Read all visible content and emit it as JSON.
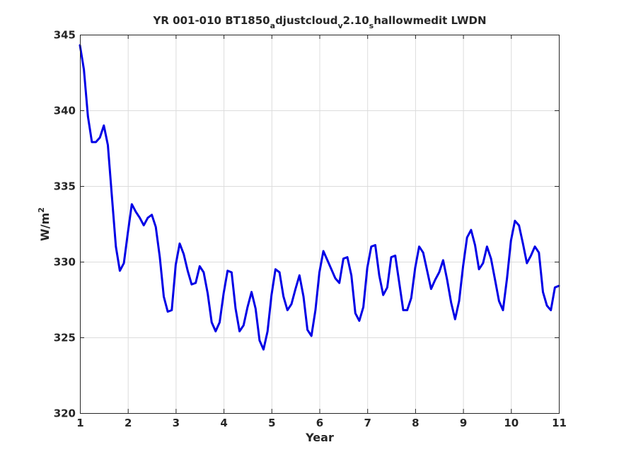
{
  "chart_data": {
    "type": "line",
    "title": {
      "seg1": "YR 001-010 BT1850",
      "sub1": "a",
      "seg2": "djustcloud",
      "sub2": "v",
      "seg3": "2.10",
      "sub3": "s",
      "seg4": "hallowmedit LWDN"
    },
    "xlabel": "Year",
    "ylabel": "W/m",
    "ylabel_sup": "2",
    "xlim": [
      1,
      11
    ],
    "ylim": [
      320,
      345
    ],
    "xticks": [
      "1",
      "2",
      "3",
      "4",
      "5",
      "6",
      "7",
      "8",
      "9",
      "10",
      "11"
    ],
    "yticks": [
      "320",
      "325",
      "330",
      "335",
      "340",
      "345"
    ],
    "grid": true,
    "series_color": "#0000e6",
    "series": [
      {
        "name": "",
        "x": [
          1.0,
          1.083,
          1.167,
          1.25,
          1.333,
          1.417,
          1.5,
          1.583,
          1.667,
          1.75,
          1.833,
          1.917,
          2.0,
          2.083,
          2.167,
          2.25,
          2.333,
          2.417,
          2.5,
          2.583,
          2.667,
          2.75,
          2.833,
          2.917,
          3.0,
          3.083,
          3.167,
          3.25,
          3.333,
          3.417,
          3.5,
          3.583,
          3.667,
          3.75,
          3.833,
          3.917,
          4.0,
          4.083,
          4.167,
          4.25,
          4.333,
          4.417,
          4.5,
          4.583,
          4.667,
          4.75,
          4.833,
          4.917,
          5.0,
          5.083,
          5.167,
          5.25,
          5.333,
          5.417,
          5.5,
          5.583,
          5.667,
          5.75,
          5.833,
          5.917,
          6.0,
          6.083,
          6.167,
          6.25,
          6.333,
          6.417,
          6.5,
          6.583,
          6.667,
          6.75,
          6.833,
          6.917,
          7.0,
          7.083,
          7.167,
          7.25,
          7.333,
          7.417,
          7.5,
          7.583,
          7.667,
          7.75,
          7.833,
          7.917,
          8.0,
          8.083,
          8.167,
          8.25,
          8.333,
          8.417,
          8.5,
          8.583,
          8.667,
          8.75,
          8.833,
          8.917,
          9.0,
          9.083,
          9.167,
          9.25,
          9.333,
          9.417,
          9.5,
          9.583,
          9.667,
          9.75,
          9.833,
          9.917,
          10.0,
          10.083,
          10.167,
          10.25,
          10.333,
          10.417,
          10.5,
          10.583,
          10.667,
          10.75,
          10.833,
          10.917,
          11.0
        ],
        "y": [
          344.3,
          342.7,
          339.6,
          337.9,
          337.9,
          338.2,
          339.0,
          337.7,
          334.3,
          331.0,
          329.4,
          329.9,
          331.9,
          333.8,
          333.3,
          332.9,
          332.4,
          332.9,
          333.1,
          332.3,
          330.3,
          327.7,
          326.7,
          326.8,
          329.8,
          331.2,
          330.5,
          329.4,
          328.5,
          328.6,
          329.7,
          329.3,
          327.9,
          326.0,
          325.4,
          326.0,
          327.9,
          329.4,
          329.3,
          326.9,
          325.4,
          325.8,
          327.0,
          328.0,
          326.9,
          324.8,
          324.2,
          325.4,
          327.8,
          329.5,
          329.3,
          327.7,
          326.8,
          327.2,
          328.2,
          329.1,
          327.7,
          325.5,
          325.1,
          326.8,
          329.3,
          330.7,
          330.1,
          329.5,
          328.9,
          328.6,
          330.2,
          330.3,
          329.1,
          326.6,
          326.1,
          327.0,
          329.6,
          331.0,
          331.1,
          329.1,
          327.8,
          328.3,
          330.3,
          330.4,
          328.6,
          326.8,
          326.8,
          327.6,
          329.6,
          331.0,
          330.6,
          329.4,
          328.2,
          328.8,
          329.3,
          330.1,
          328.8,
          327.3,
          326.2,
          327.4,
          329.7,
          331.6,
          332.1,
          331.1,
          329.5,
          329.9,
          331.0,
          330.2,
          328.8,
          327.4,
          326.8,
          328.9,
          331.4,
          332.7,
          332.4,
          331.2,
          329.9,
          330.4,
          331.0,
          330.6,
          328.0,
          327.1,
          326.8,
          328.3,
          328.4
        ]
      }
    ]
  }
}
